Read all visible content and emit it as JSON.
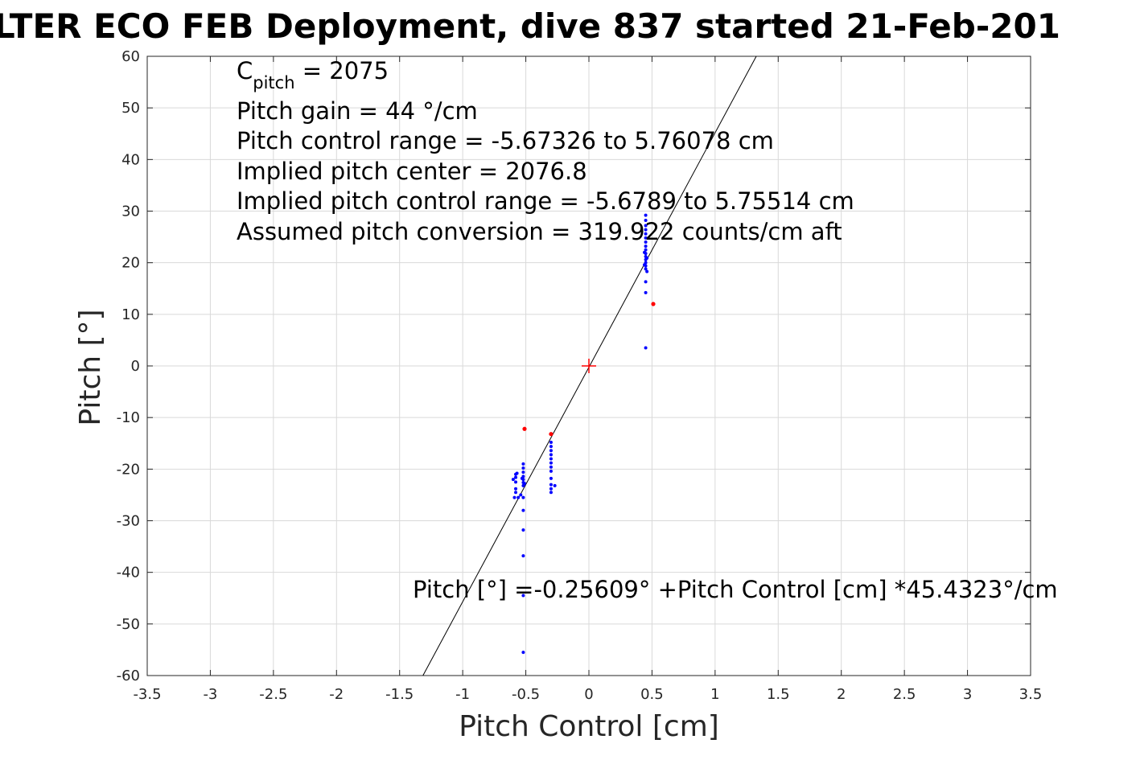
{
  "chart_data": {
    "type": "scatter",
    "title": "LTER ECO FEB Deployment, dive 837 started 21-Feb-201",
    "xlabel": "Pitch Control [cm]",
    "ylabel": "Pitch [°]",
    "xlim": [
      -3.5,
      3.5
    ],
    "ylim": [
      -60,
      60
    ],
    "xticks": [
      "-3.5",
      "-3",
      "-2.5",
      "-2",
      "-1.5",
      "-1",
      "-0.5",
      "0",
      "0.5",
      "1",
      "1.5",
      "2",
      "2.5",
      "3",
      "3.5"
    ],
    "yticks": [
      "60",
      "50",
      "40",
      "30",
      "20",
      "10",
      "0",
      "-10",
      "-20",
      "-30",
      "-40",
      "-50",
      "-60"
    ],
    "grid": true,
    "annotations": {
      "c_pitch_base": "C",
      "c_pitch_sub": "pitch",
      "c_pitch_value": " = 2075",
      "lines": [
        "Pitch gain = 44 °/cm",
        "Pitch control range = -5.67326 to 5.76078 cm",
        "Implied pitch center = 2076.8",
        "Implied pitch control range = -5.6789 to 5.75514 cm",
        "Assumed pitch conversion = 319.922 counts/cm aft"
      ],
      "fit_equation": "Pitch [°] =-0.25609° +Pitch Control [cm] *45.4323°/cm"
    },
    "fit_line": {
      "intercept": -0.25609,
      "slope": 45.4323,
      "color": "#000000"
    },
    "center_marker": {
      "x": 0,
      "y": 0,
      "color": "#ff0000"
    },
    "series": [
      {
        "color": "#0000ff",
        "points": [
          [
            0.45,
            29.2
          ],
          [
            0.45,
            28.2
          ],
          [
            0.45,
            27.2
          ],
          [
            0.45,
            26.4
          ],
          [
            0.45,
            25.6
          ],
          [
            0.45,
            24.8
          ],
          [
            0.45,
            24.0
          ],
          [
            0.45,
            23.2
          ],
          [
            0.45,
            22.5
          ],
          [
            0.45,
            21.8
          ],
          [
            0.45,
            21.2
          ],
          [
            0.45,
            20.6
          ],
          [
            0.45,
            20.0
          ],
          [
            0.45,
            19.4
          ],
          [
            0.45,
            18.8
          ],
          [
            0.46,
            18.3
          ],
          [
            0.44,
            19.6
          ],
          [
            0.46,
            20.9
          ],
          [
            0.44,
            22.0
          ],
          [
            0.45,
            16.3
          ],
          [
            0.45,
            14.2
          ],
          [
            0.45,
            3.5
          ],
          [
            -0.3,
            -14.8
          ],
          [
            -0.3,
            -15.6
          ],
          [
            -0.3,
            -16.4
          ],
          [
            -0.3,
            -17.2
          ],
          [
            -0.3,
            -18.0
          ],
          [
            -0.3,
            -18.8
          ],
          [
            -0.3,
            -19.6
          ],
          [
            -0.3,
            -20.4
          ],
          [
            -0.3,
            -21.8
          ],
          [
            -0.3,
            -23.0
          ],
          [
            -0.3,
            -23.8
          ],
          [
            -0.3,
            -24.5
          ],
          [
            -0.27,
            -23.2
          ],
          [
            -0.52,
            -19.0
          ],
          [
            -0.52,
            -19.8
          ],
          [
            -0.52,
            -20.6
          ],
          [
            -0.52,
            -21.4
          ],
          [
            -0.52,
            -22.0
          ],
          [
            -0.52,
            -22.6
          ],
          [
            -0.52,
            -23.2
          ],
          [
            -0.51,
            -22.8
          ],
          [
            -0.53,
            -21.8
          ],
          [
            -0.54,
            -25.0
          ],
          [
            -0.52,
            -25.5
          ],
          [
            -0.56,
            -25.5
          ],
          [
            -0.58,
            -24.5
          ],
          [
            -0.58,
            -23.8
          ],
          [
            -0.58,
            -22.5
          ],
          [
            -0.58,
            -21.6
          ],
          [
            -0.58,
            -21.0
          ],
          [
            -0.6,
            -22.0
          ],
          [
            -0.57,
            -20.8
          ],
          [
            -0.59,
            -25.5
          ],
          [
            -0.52,
            -28.0
          ],
          [
            -0.52,
            -31.8
          ],
          [
            -0.52,
            -36.8
          ],
          [
            -0.52,
            -44.5
          ],
          [
            -0.52,
            -55.5
          ]
        ]
      },
      {
        "color": "#ff0000",
        "points": [
          [
            -0.51,
            -12.2
          ],
          [
            -0.3,
            -13.2
          ],
          [
            0.51,
            12.0
          ]
        ]
      }
    ]
  }
}
